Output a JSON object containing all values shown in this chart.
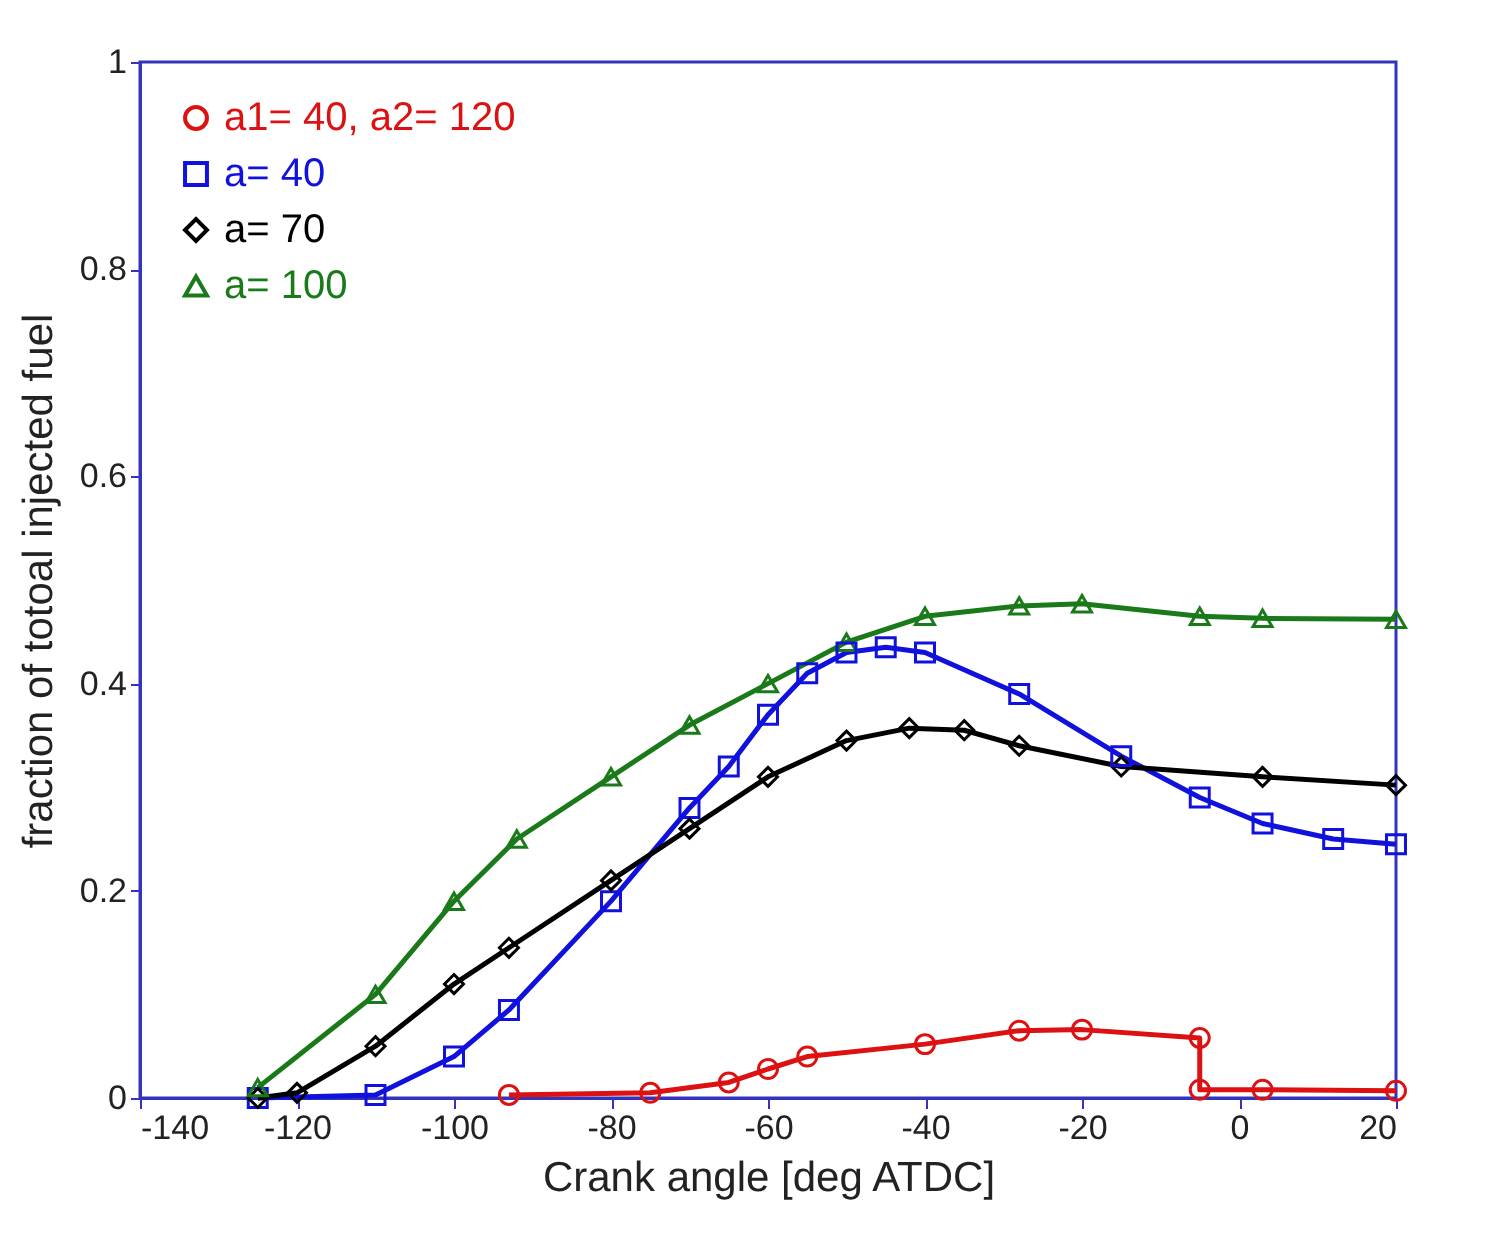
{
  "chart_data": {
    "type": "line",
    "xlabel": "Crank angle [deg ATDC]",
    "ylabel": "fraction of totoal injected fuel",
    "xlim": [
      -140,
      20
    ],
    "ylim": [
      0,
      1
    ],
    "xticks": [
      -140,
      -120,
      -100,
      -80,
      -60,
      -40,
      -20,
      0,
      20
    ],
    "yticks": [
      0,
      0.2,
      0.4,
      0.6,
      0.8,
      1
    ],
    "grid": false,
    "legend": "top left",
    "line_style": "solid",
    "series": [
      {
        "name": "a1= 40, a2= 120",
        "color": "#dd1111",
        "marker": "circle",
        "x": [
          -93,
          -75,
          -65,
          -60,
          -55,
          -40,
          -28,
          -20,
          -5,
          -5,
          3,
          20
        ],
        "values": [
          0.003,
          0.005,
          0.015,
          0.028,
          0.04,
          0.052,
          0.065,
          0.066,
          0.058,
          0.008,
          0.008,
          0.007
        ]
      },
      {
        "name": "a= 40",
        "color": "#1111dd",
        "marker": "square",
        "x": [
          -125,
          -110,
          -100,
          -93,
          -80,
          -70,
          -65,
          -60,
          -55,
          -50,
          -45,
          -40,
          -28,
          -15,
          -5,
          3,
          12,
          20
        ],
        "values": [
          0,
          0.003,
          0.04,
          0.085,
          0.19,
          0.28,
          0.32,
          0.37,
          0.41,
          0.43,
          0.435,
          0.43,
          0.39,
          0.33,
          0.29,
          0.265,
          0.25,
          0.245
        ]
      },
      {
        "name": "a= 70",
        "color": "#000000",
        "marker": "diamond",
        "x": [
          -125,
          -120,
          -110,
          -100,
          -93,
          -80,
          -70,
          -60,
          -50,
          -42,
          -35,
          -28,
          -15,
          3,
          20
        ],
        "values": [
          0,
          0.005,
          0.05,
          0.11,
          0.145,
          0.21,
          0.26,
          0.31,
          0.345,
          0.357,
          0.355,
          0.34,
          0.32,
          0.31,
          0.302
        ]
      },
      {
        "name": "a= 100",
        "color": "#1a7a1a",
        "marker": "triangle",
        "x": [
          -125,
          -110,
          -100,
          -92,
          -80,
          -70,
          -60,
          -50,
          -40,
          -28,
          -20,
          -5,
          3,
          20
        ],
        "values": [
          0.01,
          0.1,
          0.19,
          0.25,
          0.31,
          0.36,
          0.4,
          0.44,
          0.465,
          0.475,
          0.477,
          0.465,
          0.463,
          0.462
        ]
      }
    ]
  }
}
